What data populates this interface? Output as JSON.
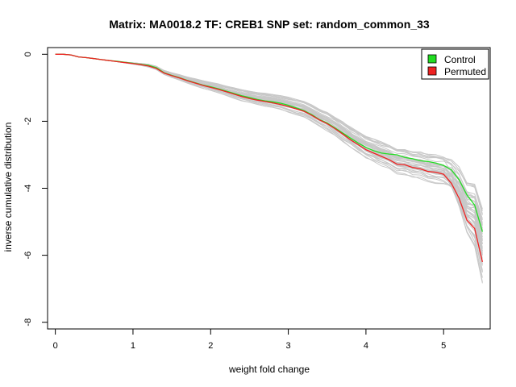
{
  "chart_data": {
    "type": "line",
    "title": "Matrix: MA0018.2 TF: CREB1 SNP set: random_common_33",
    "xlabel": "weight fold change",
    "ylabel": "inverse cumulative distribution",
    "xlim": [
      -0.1,
      5.6
    ],
    "ylim": [
      -8.2,
      0.2
    ],
    "x_ticks": [
      0,
      1,
      2,
      3,
      4,
      5
    ],
    "x_tick_labels": [
      "0",
      "1",
      "2",
      "3",
      "4",
      "5"
    ],
    "y_ticks": [
      0,
      -2,
      -4,
      -6,
      -8
    ],
    "y_tick_labels": [
      "0",
      "-2",
      "-4",
      "-6",
      "-8"
    ],
    "legend": {
      "position": "top-right",
      "entries": [
        {
          "label": "Control",
          "color": "#22dd22"
        },
        {
          "label": "Permuted",
          "color": "#ee2222"
        }
      ]
    },
    "background_curves": {
      "color": "#c8c8c8",
      "count": 40
    },
    "series": [
      {
        "name": "Control",
        "color": "#22dd22",
        "x": [
          0,
          0.1,
          0.2,
          0.3,
          0.4,
          0.5,
          0.6,
          0.7,
          0.8,
          0.9,
          1.0,
          1.1,
          1.2,
          1.3,
          1.4,
          1.5,
          1.6,
          1.7,
          1.8,
          1.9,
          2.0,
          2.1,
          2.2,
          2.3,
          2.4,
          2.5,
          2.6,
          2.7,
          2.8,
          2.9,
          3.0,
          3.1,
          3.2,
          3.3,
          3.4,
          3.5,
          3.6,
          3.7,
          3.8,
          3.9,
          4.0,
          4.1,
          4.2,
          4.3,
          4.4,
          4.5,
          4.6,
          4.7,
          4.8,
          4.9,
          5.0,
          5.1,
          5.2,
          5.3,
          5.4,
          5.5
        ],
        "y": [
          0,
          0,
          -0.02,
          -0.08,
          -0.1,
          -0.13,
          -0.16,
          -0.19,
          -0.21,
          -0.24,
          -0.27,
          -0.3,
          -0.33,
          -0.4,
          -0.55,
          -0.63,
          -0.7,
          -0.78,
          -0.85,
          -0.92,
          -0.97,
          -1.03,
          -1.1,
          -1.17,
          -1.24,
          -1.29,
          -1.35,
          -1.39,
          -1.42,
          -1.46,
          -1.52,
          -1.6,
          -1.68,
          -1.8,
          -1.95,
          -2.05,
          -2.2,
          -2.35,
          -2.5,
          -2.65,
          -2.78,
          -2.88,
          -2.95,
          -2.98,
          -3.0,
          -3.08,
          -3.12,
          -3.18,
          -3.2,
          -3.25,
          -3.32,
          -3.45,
          -3.75,
          -4.2,
          -4.5,
          -5.3
        ]
      },
      {
        "name": "Permuted",
        "color": "#ee2222",
        "x": [
          0,
          0.1,
          0.2,
          0.3,
          0.4,
          0.5,
          0.6,
          0.7,
          0.8,
          0.9,
          1.0,
          1.1,
          1.2,
          1.3,
          1.4,
          1.5,
          1.6,
          1.7,
          1.8,
          1.9,
          2.0,
          2.1,
          2.2,
          2.3,
          2.4,
          2.5,
          2.6,
          2.7,
          2.8,
          2.9,
          3.0,
          3.1,
          3.2,
          3.3,
          3.4,
          3.5,
          3.6,
          3.7,
          3.8,
          3.9,
          4.0,
          4.1,
          4.2,
          4.3,
          4.4,
          4.5,
          4.6,
          4.7,
          4.8,
          4.9,
          5.0,
          5.1,
          5.2,
          5.3,
          5.4,
          5.5
        ],
        "y": [
          0,
          0,
          -0.02,
          -0.08,
          -0.1,
          -0.13,
          -0.16,
          -0.19,
          -0.22,
          -0.25,
          -0.28,
          -0.31,
          -0.35,
          -0.42,
          -0.56,
          -0.64,
          -0.71,
          -0.79,
          -0.86,
          -0.93,
          -0.99,
          -1.05,
          -1.12,
          -1.19,
          -1.26,
          -1.32,
          -1.37,
          -1.41,
          -1.45,
          -1.5,
          -1.56,
          -1.63,
          -1.7,
          -1.82,
          -1.96,
          -2.07,
          -2.22,
          -2.38,
          -2.55,
          -2.7,
          -2.85,
          -2.95,
          -3.05,
          -3.15,
          -3.28,
          -3.3,
          -3.38,
          -3.42,
          -3.5,
          -3.52,
          -3.58,
          -3.85,
          -4.3,
          -4.95,
          -5.2,
          -6.2
        ]
      }
    ]
  }
}
